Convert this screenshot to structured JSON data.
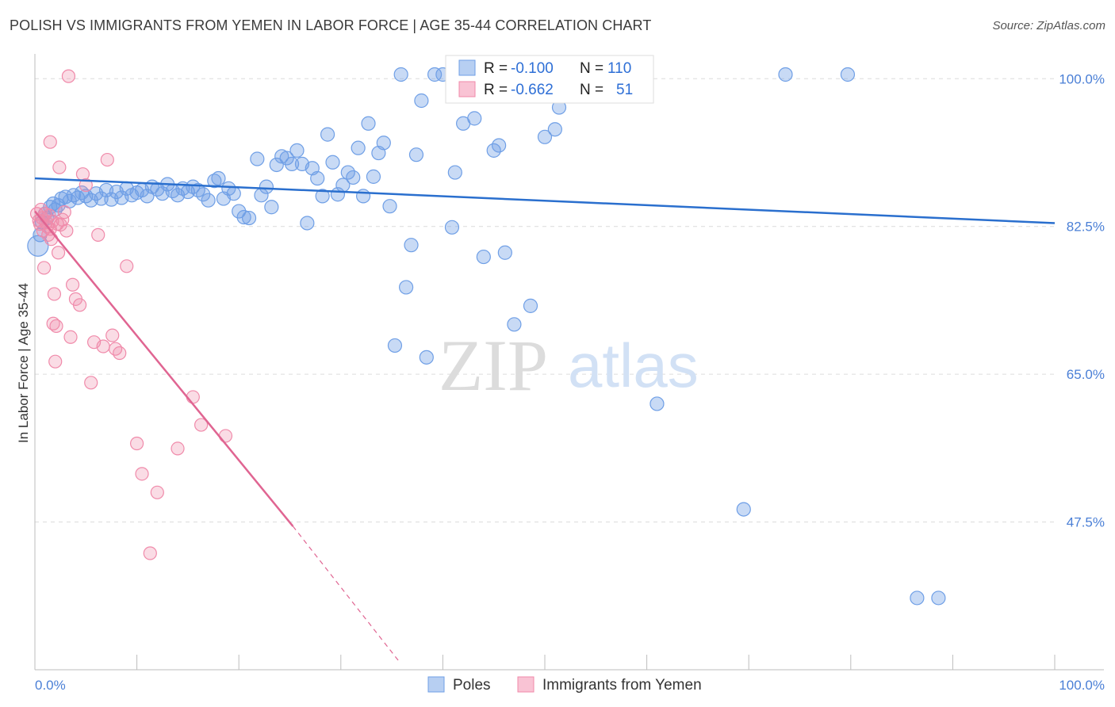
{
  "header": {
    "title": "POLISH VS IMMIGRANTS FROM YEMEN IN LABOR FORCE | AGE 35-44 CORRELATION CHART",
    "source": "Source: ZipAtlas.com"
  },
  "watermark": {
    "zip": "ZIP",
    "atlas": "atlas"
  },
  "colors": {
    "poles": "#6f9fe6",
    "poles_line": "#2a6fce",
    "yemen": "#f08aaa",
    "yemen_line": "#e06592",
    "tick": "#4a7fd6"
  },
  "chart_data": {
    "type": "scatter",
    "xlabel": "",
    "ylabel": "In Labor Force | Age 35-44",
    "xlim": [
      0,
      100
    ],
    "ylim": [
      30,
      102
    ],
    "x_tick_labels": [
      "0.0%",
      "100.0%"
    ],
    "y_ticks": [
      47.5,
      65.0,
      82.5,
      100.0
    ],
    "y_tick_labels": [
      "47.5%",
      "65.0%",
      "82.5%",
      "100.0%"
    ],
    "grid": true,
    "legend": {
      "position": "top-center",
      "rows": [
        {
          "r_label": "R = ",
          "r_value": "-0.100",
          "n_label": "N = ",
          "n_value": "110"
        },
        {
          "r_label": "R = ",
          "r_value": "-0.662",
          "n_label": "N = ",
          "n_value": "51"
        }
      ]
    },
    "series": [
      {
        "name": "Poles",
        "trend": {
          "x": [
            0,
            100
          ],
          "y": [
            88.2,
            82.9
          ]
        },
        "points": [
          [
            0.3,
            80.2
          ],
          [
            0.5,
            81.5
          ],
          [
            0.7,
            83.0
          ],
          [
            1.0,
            84.0
          ],
          [
            1.2,
            83.5
          ],
          [
            1.5,
            84.8
          ],
          [
            1.8,
            85.2
          ],
          [
            2.0,
            84.5
          ],
          [
            2.3,
            85.0
          ],
          [
            2.6,
            85.8
          ],
          [
            3.0,
            86.0
          ],
          [
            3.4,
            85.5
          ],
          [
            3.8,
            86.2
          ],
          [
            4.2,
            85.9
          ],
          [
            4.6,
            86.5
          ],
          [
            5.0,
            86.1
          ],
          [
            5.5,
            85.6
          ],
          [
            6.0,
            86.4
          ],
          [
            6.5,
            85.8
          ],
          [
            7.0,
            86.8
          ],
          [
            7.5,
            85.7
          ],
          [
            8.0,
            86.6
          ],
          [
            8.5,
            85.9
          ],
          [
            9.0,
            87.0
          ],
          [
            9.5,
            86.2
          ],
          [
            10.0,
            86.5
          ],
          [
            10.5,
            86.8
          ],
          [
            11.0,
            86.1
          ],
          [
            11.5,
            87.2
          ],
          [
            12.0,
            86.9
          ],
          [
            12.5,
            86.4
          ],
          [
            13.0,
            87.5
          ],
          [
            13.5,
            86.7
          ],
          [
            14.0,
            86.2
          ],
          [
            14.5,
            87.0
          ],
          [
            15.0,
            86.6
          ],
          [
            15.5,
            87.2
          ],
          [
            16.0,
            86.8
          ],
          [
            16.5,
            86.3
          ],
          [
            17.0,
            85.6
          ],
          [
            17.6,
            87.9
          ],
          [
            18.0,
            88.2
          ],
          [
            18.5,
            85.8
          ],
          [
            19.0,
            87.0
          ],
          [
            19.5,
            86.4
          ],
          [
            20.0,
            84.3
          ],
          [
            20.5,
            83.6
          ],
          [
            21.0,
            83.5
          ],
          [
            21.8,
            90.5
          ],
          [
            22.2,
            86.2
          ],
          [
            22.7,
            87.2
          ],
          [
            23.2,
            84.8
          ],
          [
            23.7,
            89.8
          ],
          [
            24.2,
            90.8
          ],
          [
            24.7,
            90.6
          ],
          [
            25.2,
            89.9
          ],
          [
            25.7,
            91.5
          ],
          [
            26.2,
            89.9
          ],
          [
            26.7,
            82.9
          ],
          [
            27.2,
            89.4
          ],
          [
            27.7,
            88.2
          ],
          [
            28.2,
            86.1
          ],
          [
            28.7,
            93.4
          ],
          [
            29.2,
            90.1
          ],
          [
            29.7,
            86.3
          ],
          [
            30.2,
            87.4
          ],
          [
            30.7,
            88.9
          ],
          [
            31.2,
            88.3
          ],
          [
            31.7,
            91.8
          ],
          [
            32.2,
            86.1
          ],
          [
            32.7,
            94.7
          ],
          [
            33.2,
            88.4
          ],
          [
            33.7,
            91.2
          ],
          [
            34.2,
            92.4
          ],
          [
            34.8,
            84.9
          ],
          [
            35.3,
            68.4
          ],
          [
            35.9,
            100.5
          ],
          [
            36.4,
            75.3
          ],
          [
            36.9,
            80.3
          ],
          [
            37.4,
            91.0
          ],
          [
            37.9,
            97.4
          ],
          [
            38.4,
            67.0
          ],
          [
            39.2,
            100.5
          ],
          [
            40.0,
            100.5
          ],
          [
            40.9,
            82.4
          ],
          [
            41.2,
            88.9
          ],
          [
            42.0,
            94.7
          ],
          [
            43.1,
            95.3
          ],
          [
            44.0,
            78.9
          ],
          [
            45.0,
            91.5
          ],
          [
            45.5,
            92.1
          ],
          [
            46.1,
            79.4
          ],
          [
            47.0,
            70.9
          ],
          [
            48.0,
            100.5
          ],
          [
            48.6,
            73.1
          ],
          [
            50.0,
            93.1
          ],
          [
            51.0,
            94.0
          ],
          [
            51.4,
            96.6
          ],
          [
            52.6,
            100.5
          ],
          [
            53.0,
            100.5
          ],
          [
            53.6,
            100.5
          ],
          [
            54.6,
            100.5
          ],
          [
            55.2,
            100.5
          ],
          [
            55.8,
            100.5
          ],
          [
            56.8,
            100.5
          ],
          [
            61.0,
            61.5
          ],
          [
            69.5,
            49.0
          ],
          [
            73.6,
            100.5
          ],
          [
            79.7,
            100.5
          ],
          [
            86.5,
            38.5
          ],
          [
            88.6,
            38.5
          ]
        ]
      },
      {
        "name": "Immigrants from Yemen",
        "trend": {
          "x": [
            0,
            25.3
          ],
          "y": [
            84.3,
            47.0
          ]
        },
        "trend_dash": {
          "x": [
            25.3,
            35.7
          ],
          "y": [
            47.0,
            31.0
          ]
        },
        "points": [
          [
            0.2,
            84.0
          ],
          [
            0.4,
            83.2
          ],
          [
            0.5,
            82.8
          ],
          [
            0.6,
            84.5
          ],
          [
            0.7,
            83.5
          ],
          [
            0.8,
            82.0
          ],
          [
            0.9,
            77.6
          ],
          [
            1.0,
            84.0
          ],
          [
            1.1,
            83.0
          ],
          [
            1.2,
            82.5
          ],
          [
            1.3,
            81.5
          ],
          [
            1.4,
            83.8
          ],
          [
            1.5,
            82.2
          ],
          [
            1.6,
            81.0
          ],
          [
            1.7,
            83.1
          ],
          [
            1.8,
            71.0
          ],
          [
            1.9,
            74.5
          ],
          [
            2.0,
            66.5
          ],
          [
            2.1,
            70.7
          ],
          [
            2.2,
            82.8
          ],
          [
            2.3,
            79.4
          ],
          [
            2.4,
            89.5
          ],
          [
            2.5,
            82.7
          ],
          [
            2.7,
            83.3
          ],
          [
            2.9,
            84.2
          ],
          [
            3.1,
            82.0
          ],
          [
            3.3,
            100.3
          ],
          [
            3.5,
            69.4
          ],
          [
            3.7,
            75.6
          ],
          [
            4.0,
            73.9
          ],
          [
            4.4,
            73.2
          ],
          [
            4.7,
            88.7
          ],
          [
            5.0,
            87.4
          ],
          [
            5.5,
            64.0
          ],
          [
            5.8,
            68.8
          ],
          [
            6.2,
            81.5
          ],
          [
            6.7,
            68.3
          ],
          [
            7.1,
            90.4
          ],
          [
            7.6,
            69.6
          ],
          [
            7.9,
            68.0
          ],
          [
            8.3,
            67.5
          ],
          [
            9.0,
            77.8
          ],
          [
            10.0,
            56.8
          ],
          [
            10.5,
            53.2
          ],
          [
            11.3,
            43.8
          ],
          [
            12.0,
            51.0
          ],
          [
            14.0,
            56.2
          ],
          [
            15.5,
            62.3
          ],
          [
            16.3,
            59.0
          ],
          [
            18.7,
            57.7
          ],
          [
            1.5,
            92.5
          ]
        ]
      }
    ]
  }
}
